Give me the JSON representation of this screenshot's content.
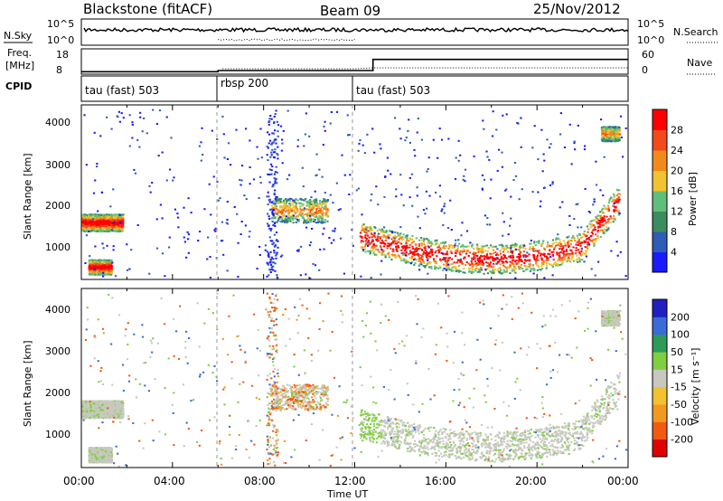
{
  "header": {
    "station": "Blackstone (fitACF)",
    "beam": "Beam 09",
    "date": "25/Nov/2012"
  },
  "nsky_panel": {
    "left_label": "N.Sky",
    "right_label": "N.Search",
    "left_ticks": [
      "10^5",
      "10^0"
    ],
    "right_ticks": [
      "10^5",
      "10^0"
    ]
  },
  "freq_panel": {
    "left_label_1": "Freq.",
    "left_label_2": "[MHz]",
    "right_label": "Nave",
    "left_ticks": [
      "18",
      "8"
    ],
    "right_ticks": [
      "60",
      "0"
    ]
  },
  "cpid_panel": {
    "label": "CPID",
    "segments": [
      {
        "name": "tau (fast) 503",
        "start_hour": 0,
        "end_hour": 6
      },
      {
        "name": "rbsp 200",
        "start_hour": 6,
        "end_hour": 12
      },
      {
        "name": "tau (fast) 503",
        "start_hour": 12,
        "end_hour": 24
      }
    ]
  },
  "power_panel": {
    "ylabel": "Slant Range [km]",
    "cbar_label": "Power [dB]",
    "y_ticks": [
      "4000",
      "3000",
      "2000",
      "1000"
    ],
    "cbar_ticks": [
      "28",
      "24",
      "20",
      "16",
      "12",
      "8",
      "4"
    ],
    "colors": [
      "#1a1aff",
      "#2f5cb8",
      "#3b8c5e",
      "#5fbf7a",
      "#f2c230",
      "#f28a1a",
      "#f24a1a",
      "#ff0000"
    ]
  },
  "velocity_panel": {
    "ylabel": "Slant Range [km]",
    "cbar_label": "Velocity [m s⁻¹]",
    "y_ticks": [
      "4000",
      "3000",
      "2000",
      "1000"
    ],
    "cbar_ticks": [
      "200",
      "100",
      "50",
      "15",
      "-15",
      "-50",
      "-100",
      "-200"
    ],
    "colors": [
      "#2020c0",
      "#3b6bd9",
      "#2e9a5a",
      "#7fcf40",
      "#c8c8c0",
      "#f2c230",
      "#f29a20",
      "#f25a10",
      "#e00000"
    ]
  },
  "x_axis": {
    "label": "Time UT",
    "ticks": [
      "00:00",
      "04:00",
      "08:00",
      "12:00",
      "16:00",
      "20:00",
      "00:00"
    ]
  },
  "chart_data": {
    "type": "heatmap",
    "x_range_hours": [
      0,
      24
    ],
    "y_range_km": [
      180,
      4500
    ],
    "mode_change_hours": [
      6,
      12
    ],
    "frequency_mhz": [
      {
        "start_hour": 0,
        "end_hour": 6,
        "value": 8.3
      },
      {
        "start_hour": 6,
        "end_hour": 12.8,
        "value": 8.9
      },
      {
        "start_hour": 12.8,
        "end_hour": 24,
        "value": 14.5
      }
    ],
    "power_regions": [
      {
        "t_start": 0.0,
        "t_end": 1.8,
        "range_center_km": 1600,
        "range_width_km": 350,
        "level": "high"
      },
      {
        "t_start": 0.3,
        "t_end": 1.3,
        "range_center_km": 500,
        "range_width_km": 300,
        "level": "high"
      },
      {
        "t_start": 8.3,
        "t_end": 10.8,
        "range_center_km": 1900,
        "range_width_km": 500,
        "level": "medium"
      },
      {
        "t_start": 12.2,
        "t_end": 23.6,
        "range_center_km": 1200,
        "range_width_km": 600,
        "level": "high"
      },
      {
        "t_start": 22.8,
        "t_end": 23.6,
        "range_center_km": 3800,
        "range_width_km": 300,
        "level": "medium"
      }
    ]
  }
}
